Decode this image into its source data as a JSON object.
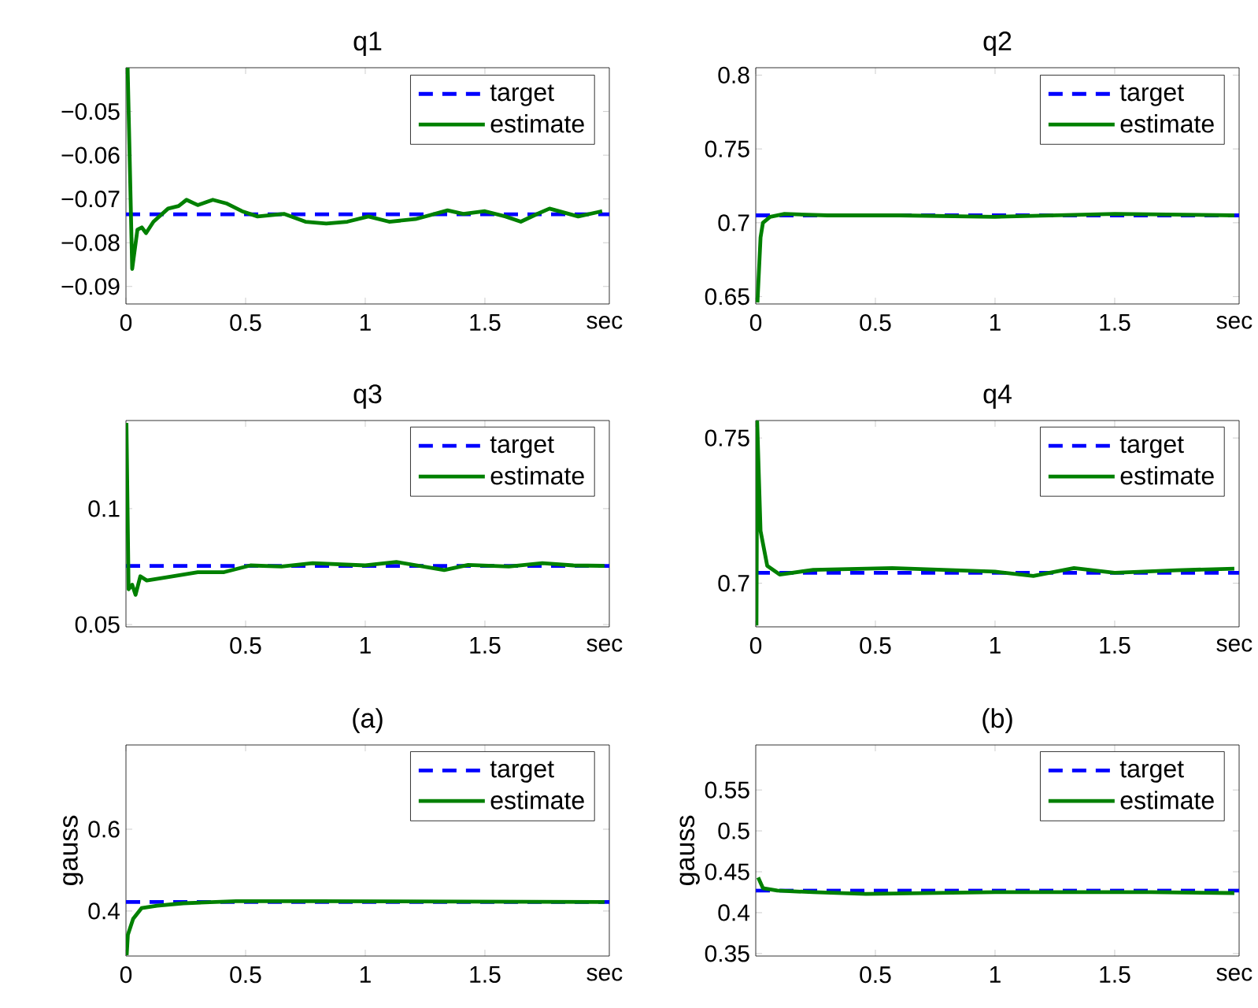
{
  "chart_data": [
    {
      "type": "line",
      "title": "q1",
      "xlabel": "sec",
      "legend": "top right",
      "xlim": [
        0,
        2.02
      ],
      "xticks": [
        0,
        0.5,
        1,
        1.5
      ],
      "ylim": [
        -0.094,
        -0.04
      ],
      "yticks": [
        {
          "value": -0.09,
          "label": "−0.09"
        },
        {
          "value": -0.08,
          "label": "−0.08"
        },
        {
          "value": -0.07,
          "label": "−0.07"
        },
        {
          "value": -0.06,
          "label": "−0.06"
        },
        {
          "value": -0.05,
          "label": "−0.05"
        }
      ],
      "series": [
        {
          "name": "target",
          "color": "#0000ff",
          "line_style": "dashed",
          "x": [
            0,
            2.02
          ],
          "values": [
            -0.0735,
            -0.0735
          ]
        },
        {
          "name": "estimate",
          "color": "#008000",
          "line_style": "solid",
          "x": [
            0.007,
            0.026,
            0.048,
            0.066,
            0.084,
            0.115,
            0.176,
            0.22,
            0.253,
            0.3,
            0.363,
            0.419,
            0.485,
            0.55,
            0.66,
            0.75,
            0.837,
            0.925,
            1.013,
            1.1,
            1.21,
            1.344,
            1.41,
            1.5,
            1.586,
            1.65,
            1.72,
            1.77,
            1.89,
            1.99
          ],
          "values": [
            -0.04,
            -0.086,
            -0.077,
            -0.0765,
            -0.0778,
            -0.0752,
            -0.0722,
            -0.0716,
            -0.0702,
            -0.0714,
            -0.0702,
            -0.071,
            -0.0728,
            -0.074,
            -0.0734,
            -0.0752,
            -0.0756,
            -0.0752,
            -0.074,
            -0.0752,
            -0.0746,
            -0.0726,
            -0.0734,
            -0.0728,
            -0.074,
            -0.0752,
            -0.0734,
            -0.0722,
            -0.074,
            -0.0728
          ]
        }
      ]
    },
    {
      "type": "line",
      "title": "q2",
      "xlabel": "sec",
      "legend": "top right",
      "xlim": [
        0,
        2.02
      ],
      "xticks": [
        0,
        0.5,
        1,
        1.5
      ],
      "ylim": [
        0.645,
        0.805
      ],
      "yticks": [
        0.65,
        0.7,
        0.75,
        0.8
      ],
      "series": [
        {
          "name": "target",
          "color": "#0000ff",
          "line_style": "dashed",
          "x": [
            0,
            2.02
          ],
          "values": [
            0.705,
            0.705
          ]
        },
        {
          "name": "estimate",
          "color": "#008000",
          "line_style": "solid",
          "x": [
            0.007,
            0.02,
            0.03,
            0.06,
            0.12,
            0.3,
            0.6,
            1.0,
            1.5,
            2.0
          ],
          "values": [
            0.646,
            0.69,
            0.7,
            0.704,
            0.706,
            0.705,
            0.705,
            0.704,
            0.706,
            0.705
          ]
        }
      ]
    },
    {
      "type": "line",
      "title": "q3",
      "xlabel": "sec",
      "legend": "top right",
      "xlim": [
        0,
        2.02
      ],
      "xticks": [
        0.5,
        1,
        1.5
      ],
      "ylim": [
        0.049,
        0.138
      ],
      "yticks": [
        0.05,
        0.1
      ],
      "series": [
        {
          "name": "target",
          "color": "#0000ff",
          "line_style": "dashed",
          "x": [
            0,
            2.02
          ],
          "values": [
            0.0753,
            0.0753
          ]
        },
        {
          "name": "estimate",
          "color": "#008000",
          "line_style": "solid",
          "x": [
            0.002,
            0.011,
            0.026,
            0.04,
            0.06,
            0.087,
            0.174,
            0.3,
            0.41,
            0.52,
            0.65,
            0.78,
            1.0,
            1.13,
            1.33,
            1.43,
            1.6,
            1.74,
            1.87,
            2.0
          ],
          "values": [
            0.137,
            0.0652,
            0.0672,
            0.0628,
            0.0708,
            0.069,
            0.0704,
            0.0726,
            0.0726,
            0.0755,
            0.075,
            0.0765,
            0.0755,
            0.077,
            0.0735,
            0.0757,
            0.075,
            0.0765,
            0.0755,
            0.0753
          ]
        }
      ]
    },
    {
      "type": "line",
      "title": "q4",
      "xlabel": "sec",
      "legend": "top right",
      "xlim": [
        0,
        2.02
      ],
      "xticks": [
        0,
        0.5,
        1,
        1.5
      ],
      "ylim": [
        0.685,
        0.756
      ],
      "yticks": [
        0.7,
        0.75
      ],
      "series": [
        {
          "name": "target",
          "color": "#0000ff",
          "line_style": "dashed",
          "x": [
            0,
            2.02
          ],
          "values": [
            0.7036,
            0.7036
          ]
        },
        {
          "name": "estimate",
          "color": "#008000",
          "line_style": "solid",
          "x": [
            0.003,
            0.006,
            0.02,
            0.048,
            0.1,
            0.24,
            0.57,
            1.0,
            1.16,
            1.33,
            1.5,
            1.76,
            2.0
          ],
          "values": [
            0.6855,
            0.7555,
            0.718,
            0.706,
            0.703,
            0.7046,
            0.7052,
            0.704,
            0.7025,
            0.7052,
            0.7036,
            0.7045,
            0.705
          ]
        }
      ]
    },
    {
      "type": "line",
      "title": "(a)",
      "xlabel": "sec",
      "ylabel": "gauss",
      "legend": "top right",
      "xlim": [
        0,
        2.02
      ],
      "xticks": [
        0,
        0.5,
        1,
        1.5
      ],
      "ylim": [
        0.29,
        0.806
      ],
      "yticks": [
        0.4,
        0.6
      ],
      "series": [
        {
          "name": "target",
          "color": "#0000ff",
          "line_style": "dashed",
          "x": [
            0,
            2.02
          ],
          "values": [
            0.422,
            0.422
          ]
        },
        {
          "name": "estimate",
          "color": "#008000",
          "line_style": "solid",
          "x": [
            0.003,
            0.008,
            0.03,
            0.065,
            0.13,
            0.24,
            0.46,
            0.79,
            2.0
          ],
          "values": [
            0.292,
            0.342,
            0.381,
            0.407,
            0.413,
            0.419,
            0.424,
            0.424,
            0.422
          ]
        }
      ]
    },
    {
      "type": "line",
      "title": "(b)",
      "xlabel": "sec",
      "ylabel": "gauss",
      "legend": "top right",
      "xlim": [
        0,
        2.02
      ],
      "xticks": [
        0.5,
        1,
        1.5
      ],
      "ylim": [
        0.347,
        0.605
      ],
      "yticks": [
        0.35,
        0.4,
        0.45,
        0.5,
        0.55
      ],
      "series": [
        {
          "name": "target",
          "color": "#0000ff",
          "line_style": "dashed",
          "x": [
            0,
            2.02
          ],
          "values": [
            0.427,
            0.427
          ]
        },
        {
          "name": "estimate",
          "color": "#008000",
          "line_style": "solid",
          "x": [
            0.01,
            0.03,
            0.09,
            0.24,
            0.46,
            1.0,
            1.65,
            2.0
          ],
          "values": [
            0.443,
            0.43,
            0.427,
            0.425,
            0.423,
            0.425,
            0.425,
            0.424
          ]
        }
      ]
    }
  ]
}
